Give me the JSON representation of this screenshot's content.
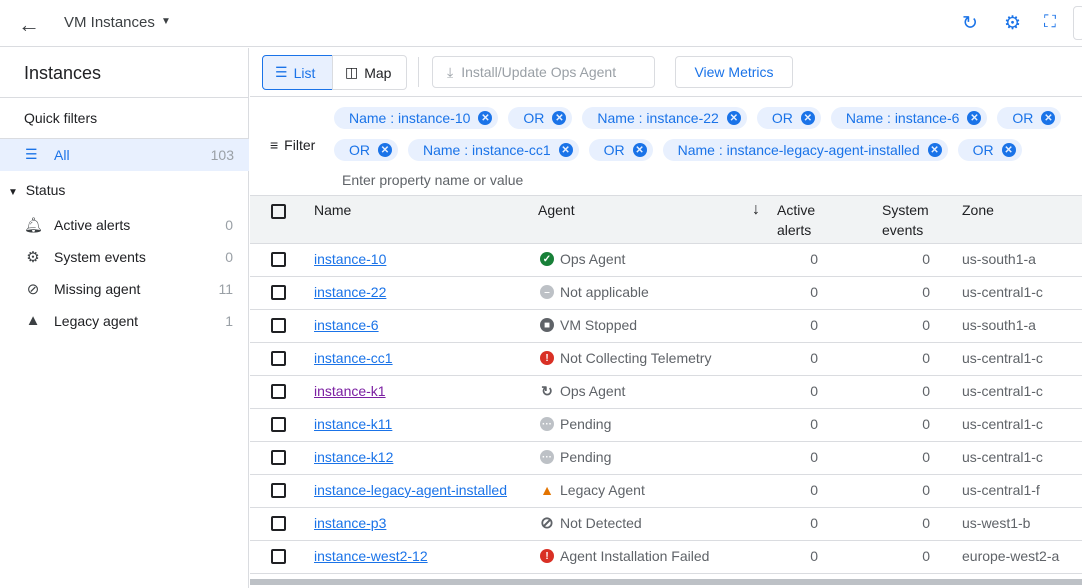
{
  "header": {
    "title": "VM Instances"
  },
  "sidebar": {
    "title": "Instances",
    "quick_filters": "Quick filters",
    "all": {
      "label": "All",
      "count": "103"
    },
    "status_label": "Status",
    "items": [
      {
        "label": "Active alerts",
        "count": "0",
        "icon": "bell-icon"
      },
      {
        "label": "System events",
        "count": "0",
        "icon": "system-events-icon"
      },
      {
        "label": "Missing agent",
        "count": "11",
        "icon": "block-icon"
      },
      {
        "label": "Legacy agent",
        "count": "1",
        "icon": "warning-icon"
      }
    ]
  },
  "toolbar": {
    "list": "List",
    "map": "Map",
    "install": "Install/Update Ops Agent",
    "view_metrics": "View Metrics"
  },
  "filter": {
    "label": "Filter",
    "placeholder": "Enter property name or value",
    "row1": [
      "Name : instance-10",
      "OR",
      "Name : instance-22",
      "OR",
      "Name : instance-6",
      "OR"
    ],
    "row2": [
      "OR",
      "Name : instance-cc1",
      "OR",
      "Name : instance-legacy-agent-installed",
      "OR"
    ]
  },
  "table": {
    "headers": {
      "name": "Name",
      "agent": "Agent",
      "active_alerts_1": "Active",
      "active_alerts_2": "alerts",
      "system_events_1": "System",
      "system_events_2": "events",
      "zone": "Zone"
    },
    "sort": "descending",
    "rows": [
      {
        "name": "instance-10",
        "agent": "Ops Agent",
        "status": "ok",
        "alerts": "0",
        "events": "0",
        "zone": "us-south1-a"
      },
      {
        "name": "instance-22",
        "agent": "Not applicable",
        "status": "na",
        "alerts": "0",
        "events": "0",
        "zone": "us-central1-c"
      },
      {
        "name": "instance-6",
        "agent": "VM Stopped",
        "status": "stopped",
        "alerts": "0",
        "events": "0",
        "zone": "us-south1-a"
      },
      {
        "name": "instance-cc1",
        "agent": "Not Collecting Telemetry",
        "status": "error",
        "alerts": "0",
        "events": "0",
        "zone": "us-central1-c"
      },
      {
        "name": "instance-k1",
        "agent": "Ops Agent",
        "status": "updating",
        "alerts": "0",
        "events": "0",
        "zone": "us-central1-c",
        "visited": true
      },
      {
        "name": "instance-k11",
        "agent": "Pending",
        "status": "pending",
        "alerts": "0",
        "events": "0",
        "zone": "us-central1-c"
      },
      {
        "name": "instance-k12",
        "agent": "Pending",
        "status": "pending",
        "alerts": "0",
        "events": "0",
        "zone": "us-central1-c"
      },
      {
        "name": "instance-legacy-agent-installed",
        "agent": "Legacy Agent",
        "status": "warning",
        "alerts": "0",
        "events": "0",
        "zone": "us-central1-f"
      },
      {
        "name": "instance-p3",
        "agent": "Not Detected",
        "status": "notdetected",
        "alerts": "0",
        "events": "0",
        "zone": "us-west1-b"
      },
      {
        "name": "instance-west2-12",
        "agent": "Agent Installation Failed",
        "status": "error",
        "alerts": "0",
        "events": "0",
        "zone": "europe-west2-a"
      }
    ]
  },
  "colors": {
    "accent": "#1a73e8",
    "ok": "#188038",
    "error": "#d93025",
    "warning": "#e37400",
    "muted": "#bdc1c6"
  }
}
